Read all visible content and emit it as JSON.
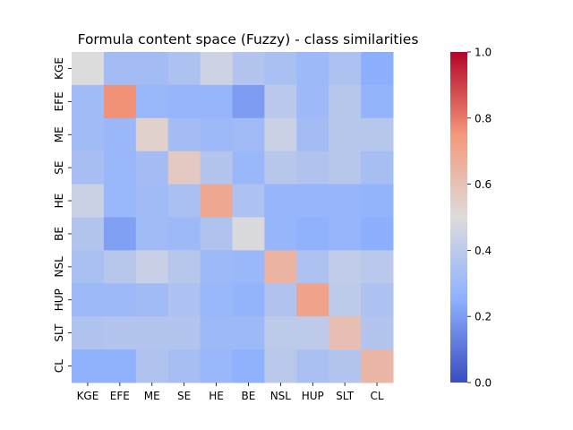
{
  "chart_data": {
    "type": "heatmap",
    "title": "Formula content space (Fuzzy) - class similarities",
    "xlabel": "",
    "ylabel": "",
    "x_categories": [
      "KGE",
      "EFE",
      "ME",
      "SE",
      "HE",
      "BE",
      "NSL",
      "HUP",
      "SLT",
      "CL"
    ],
    "y_categories": [
      "KGE",
      "EFE",
      "ME",
      "SE",
      "HE",
      "BE",
      "NSL",
      "HUP",
      "SLT",
      "CL"
    ],
    "values": [
      [
        0.5,
        0.32,
        0.32,
        0.35,
        0.45,
        0.37,
        0.34,
        0.3,
        0.35,
        0.25
      ],
      [
        0.31,
        0.76,
        0.29,
        0.28,
        0.28,
        0.2,
        0.39,
        0.3,
        0.38,
        0.27
      ],
      [
        0.31,
        0.29,
        0.54,
        0.32,
        0.3,
        0.31,
        0.44,
        0.32,
        0.38,
        0.38
      ],
      [
        0.33,
        0.29,
        0.32,
        0.57,
        0.37,
        0.29,
        0.38,
        0.36,
        0.38,
        0.33
      ],
      [
        0.44,
        0.29,
        0.31,
        0.34,
        0.69,
        0.35,
        0.28,
        0.28,
        0.28,
        0.27
      ],
      [
        0.37,
        0.21,
        0.31,
        0.3,
        0.36,
        0.49,
        0.28,
        0.26,
        0.28,
        0.25
      ],
      [
        0.34,
        0.38,
        0.43,
        0.38,
        0.3,
        0.29,
        0.65,
        0.35,
        0.41,
        0.39
      ],
      [
        0.3,
        0.3,
        0.31,
        0.35,
        0.29,
        0.27,
        0.36,
        0.71,
        0.4,
        0.35
      ],
      [
        0.36,
        0.37,
        0.37,
        0.37,
        0.3,
        0.3,
        0.4,
        0.4,
        0.61,
        0.37
      ],
      [
        0.26,
        0.26,
        0.36,
        0.33,
        0.29,
        0.26,
        0.39,
        0.34,
        0.37,
        0.64
      ]
    ],
    "colorbar": {
      "min": 0.0,
      "max": 1.0,
      "ticks": [
        "0.0",
        "0.2",
        "0.4",
        "0.6",
        "0.8",
        "1.0"
      ]
    },
    "colormap": "coolwarm",
    "grid": false
  }
}
